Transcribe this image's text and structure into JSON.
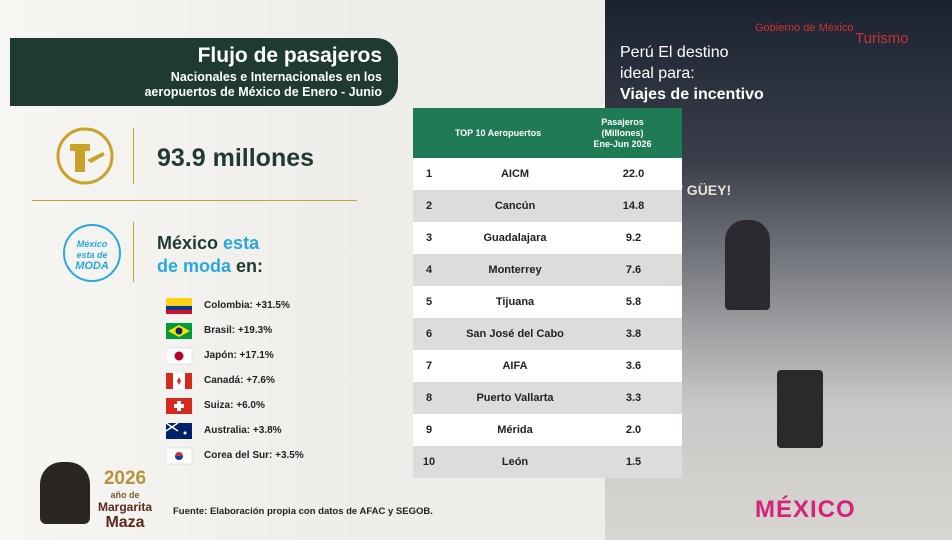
{
  "header": {
    "title": "Flujo de pasajeros",
    "subtitle_lines": [
      "Nacionales e Internacionales en los",
      "aeropuertos de México de Enero - Junio"
    ]
  },
  "stat": {
    "value_text": "93.9 millones"
  },
  "moda": {
    "badge_lines": [
      "México",
      "esta de",
      "MODA"
    ],
    "heading_parts": [
      "México",
      "esta",
      "de moda",
      "en:"
    ]
  },
  "countries": [
    "Colombia: +31.5%",
    "Brasil: +19.3%",
    "Japón: +17.1%",
    "Canadá: +7.6%",
    "Suiza: +6.0%",
    "Australia: +3.8%",
    "Corea del Sur: +3.5%"
  ],
  "table": {
    "header": [
      "TOP 10 Aeropuertos",
      [
        "Pasajeros",
        "(Millones)",
        "Ene-Jun 2026"
      ]
    ],
    "rows": [
      [
        "1",
        "AICM",
        "22.0"
      ],
      [
        "2",
        "Cancún",
        "14.8"
      ],
      [
        "3",
        "Guadalajara",
        "9.2"
      ],
      [
        "4",
        "Monterrey",
        "7.6"
      ],
      [
        "5",
        "Tijuana",
        "5.8"
      ],
      [
        "6",
        "San José del Cabo",
        "3.8"
      ],
      [
        "7",
        "AIFA",
        "3.6"
      ],
      [
        "8",
        "Puerto Vallarta",
        "3.3"
      ],
      [
        "9",
        "Mérida",
        "2.0"
      ],
      [
        "10",
        "León",
        "1.5"
      ]
    ]
  },
  "source": "Fuente: Elaboración propia con datos de AFAC y SEGOB.",
  "logo": {
    "year": "2026",
    "lines": [
      "año de",
      "Margarita",
      "Maza"
    ]
  },
  "photo": {
    "sign_lines": [
      "Perú El destino",
      "ideal para:",
      "Viajes de incentivo"
    ],
    "wall": "AY GÜEY!",
    "gob": "Gobierno de México",
    "turismo": "Turismo",
    "brand": "MÉXICO"
  }
}
